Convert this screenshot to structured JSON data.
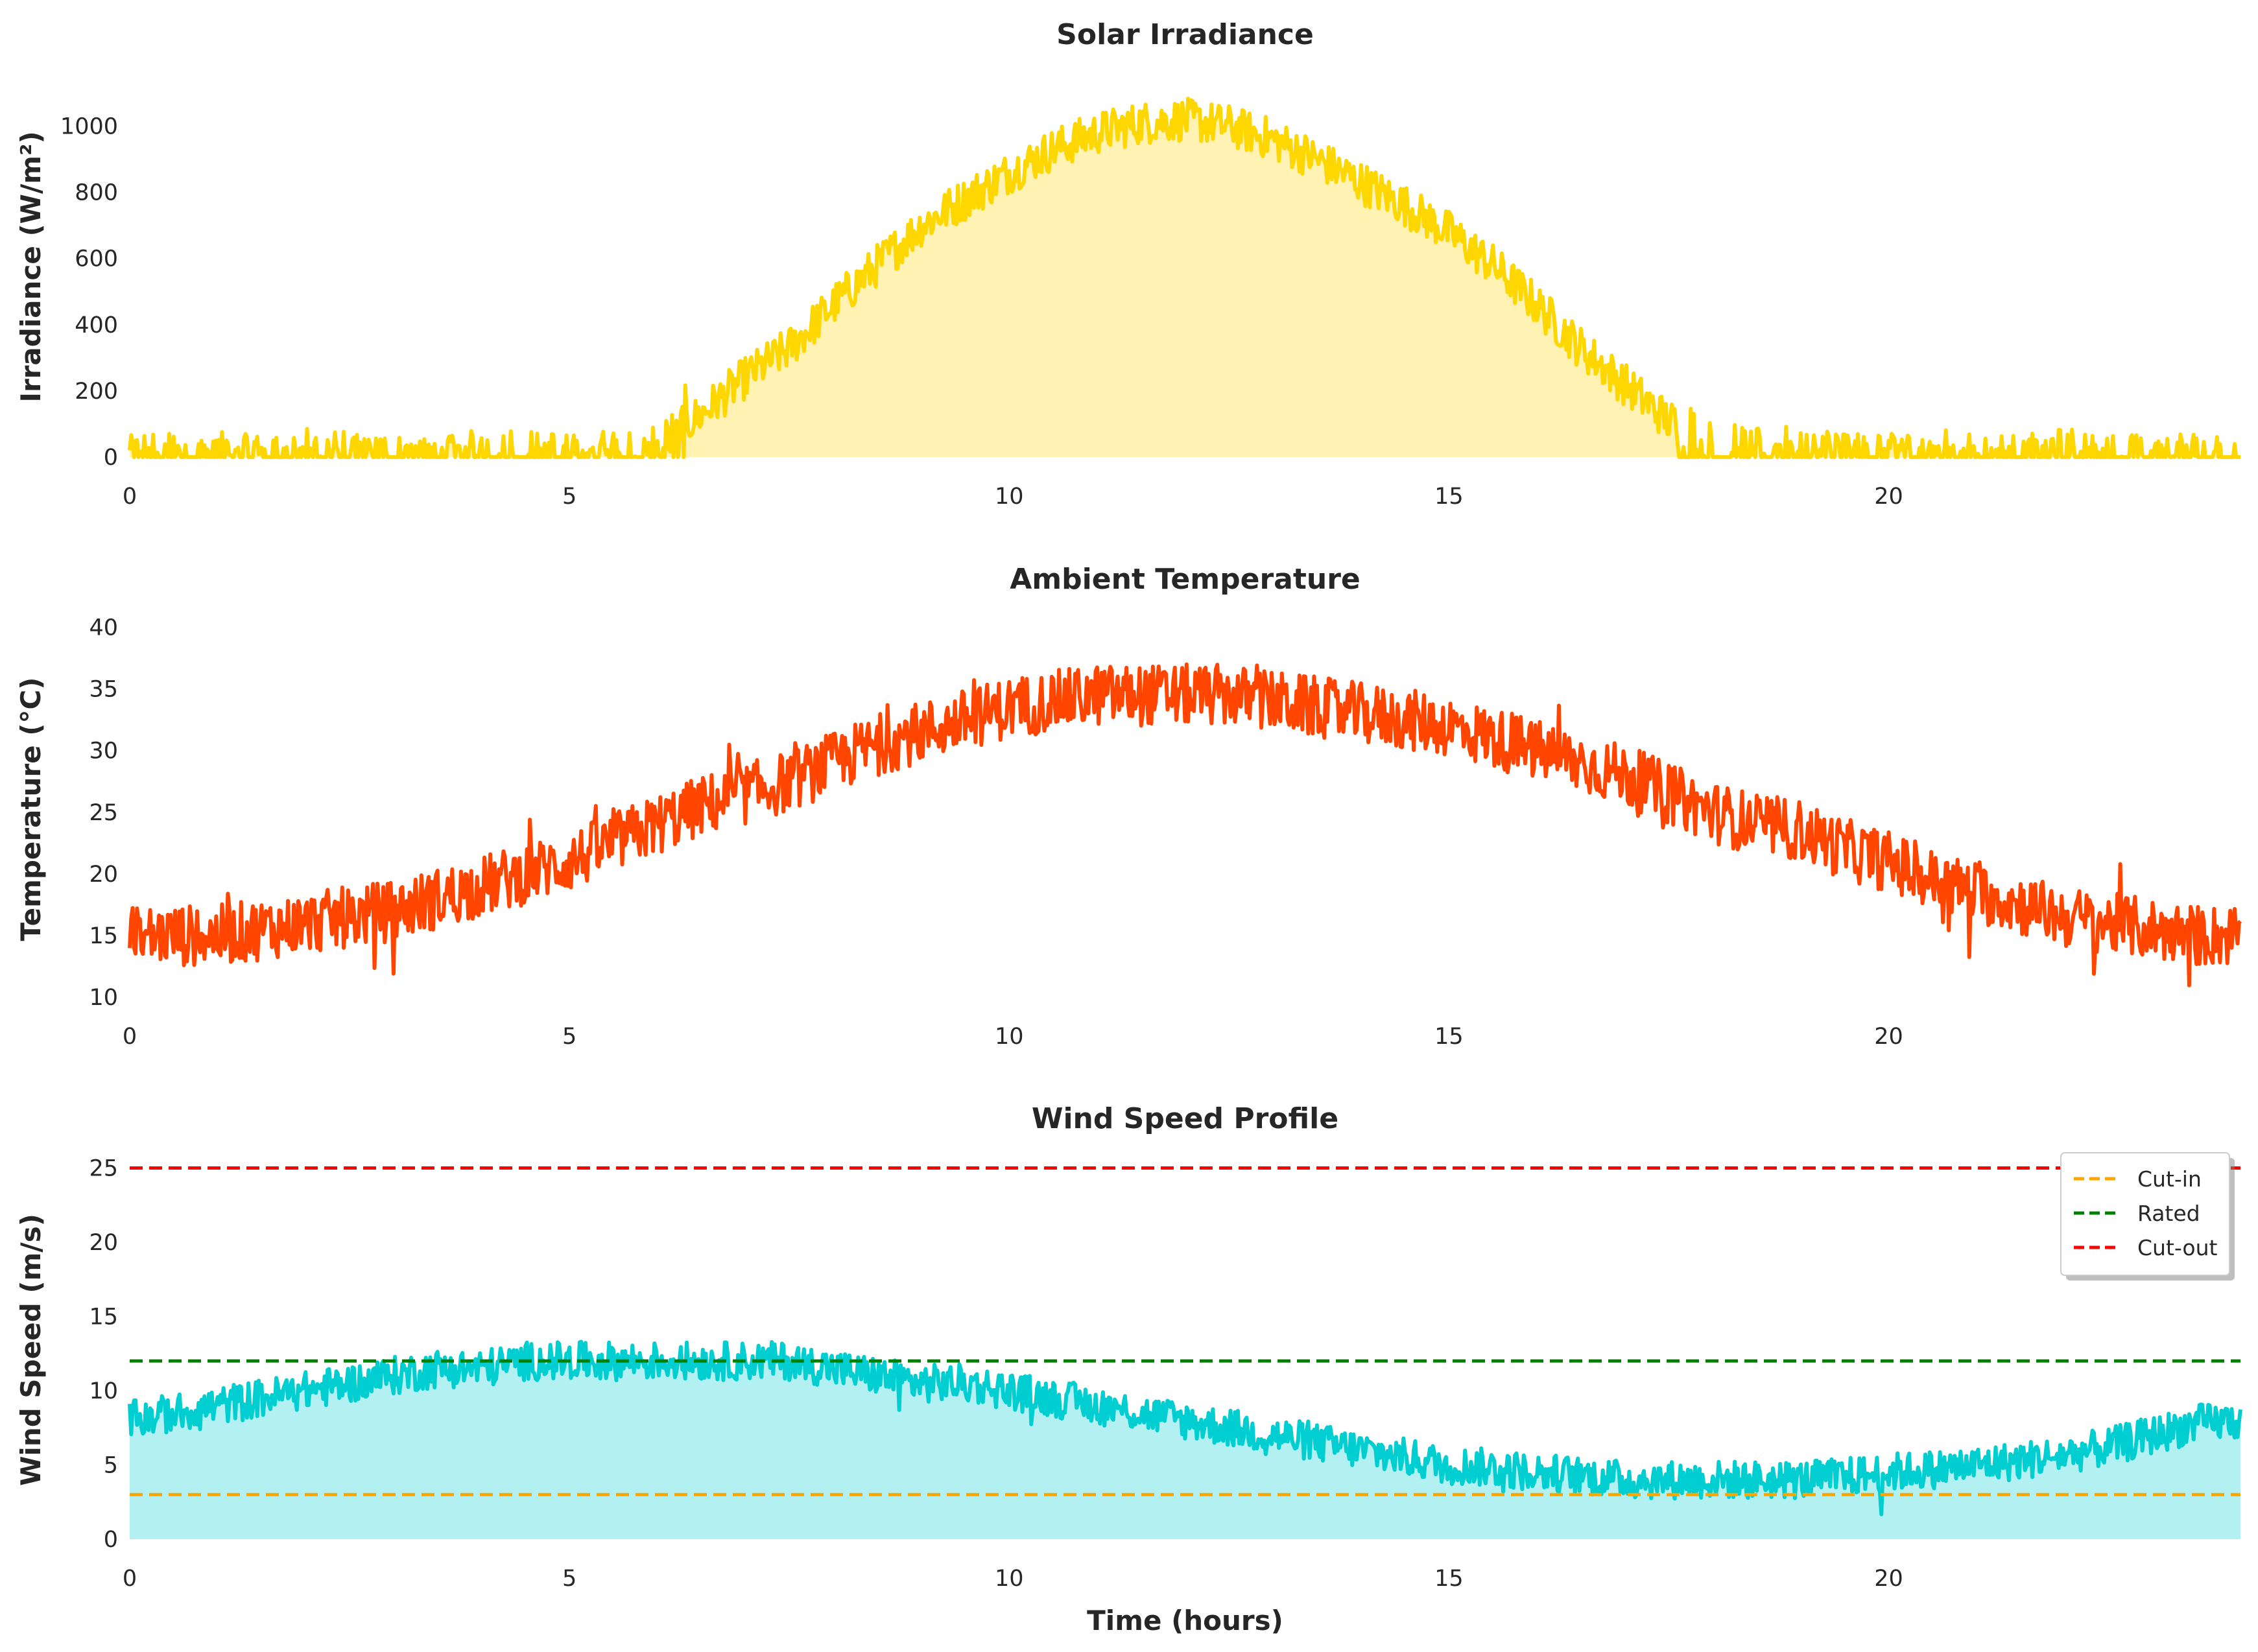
{
  "chart_data": [
    {
      "type": "area",
      "title": "Solar Irradiance",
      "xlabel": "",
      "ylabel": "Irradiance (W/m²)",
      "xlim": [
        0,
        24
      ],
      "ylim": [
        0,
        1150
      ],
      "xticks": [
        0,
        5,
        10,
        15,
        20
      ],
      "yticks": [
        0,
        200,
        400,
        600,
        800,
        1000
      ],
      "grid": false,
      "series": [
        {
          "color": "#FFD700",
          "fill": "#FFF2B3",
          "x": [
            0,
            0.5,
            1,
            1.5,
            2,
            2.5,
            3,
            3.5,
            4,
            4.5,
            5,
            5.5,
            6,
            6.5,
            7,
            7.5,
            8,
            8.5,
            9,
            9.5,
            10,
            10.5,
            11,
            11.5,
            12,
            12.5,
            13,
            13.5,
            14,
            14.5,
            15,
            15.5,
            16,
            16.5,
            17,
            17.5,
            18,
            18.5,
            19,
            19.5,
            20,
            20.5,
            21,
            21.5,
            22,
            22.5,
            23,
            23.5,
            24
          ],
          "values": [
            30,
            40,
            35,
            30,
            40,
            35,
            30,
            25,
            40,
            45,
            30,
            40,
            45,
            130,
            240,
            330,
            460,
            580,
            700,
            780,
            860,
            930,
            980,
            1010,
            1020,
            1000,
            960,
            900,
            830,
            760,
            680,
            580,
            460,
            330,
            220,
            110,
            50,
            40,
            45,
            40,
            35,
            40,
            35,
            30,
            40,
            35,
            30,
            35,
            30
          ]
        }
      ]
    },
    {
      "type": "line",
      "title": "Ambient Temperature",
      "xlabel": "",
      "ylabel": "Temperature (°C)",
      "xlim": [
        0,
        24
      ],
      "ylim": [
        10,
        40.5
      ],
      "xticks": [
        0,
        5,
        10,
        15,
        20
      ],
      "yticks": [
        10,
        15,
        20,
        25,
        30,
        35,
        40
      ],
      "grid": false,
      "series": [
        {
          "color": "#FF4500",
          "x": [
            0,
            0.5,
            1,
            1.5,
            2,
            2.5,
            3,
            3.5,
            4,
            4.5,
            5,
            5.5,
            6,
            6.5,
            7,
            7.5,
            8,
            8.5,
            9,
            9.5,
            10,
            10.5,
            11,
            11.5,
            12,
            12.5,
            13,
            13.5,
            14,
            14.5,
            15,
            15.5,
            16,
            16.5,
            17,
            17.5,
            18,
            18.5,
            19,
            19.5,
            20,
            20.5,
            21,
            21.5,
            22,
            22.5,
            23,
            23.5,
            24
          ],
          "values": [
            15,
            15,
            15,
            15.5,
            16,
            16.5,
            17,
            18,
            19,
            20,
            21,
            22.5,
            24,
            25.5,
            26.5,
            27.5,
            29,
            30.5,
            31.5,
            32.5,
            33.5,
            34,
            34.5,
            34.5,
            34.5,
            34.5,
            34,
            33.5,
            33,
            32.5,
            32,
            31,
            30,
            29,
            28,
            26.5,
            25,
            24,
            23.5,
            22,
            21,
            19.5,
            18.5,
            17.5,
            16.5,
            16,
            15.5,
            15,
            15
          ]
        }
      ]
    },
    {
      "type": "area",
      "title": "Wind Speed Profile",
      "xlabel": "Time (hours)",
      "ylabel": "Wind Speed (m/s)",
      "xlim": [
        0,
        24
      ],
      "ylim": [
        0,
        25.5
      ],
      "xticks": [
        0,
        5,
        10,
        15,
        20
      ],
      "yticks": [
        0,
        5,
        10,
        15,
        20,
        25
      ],
      "grid": false,
      "legend_position": "top-right",
      "series": [
        {
          "color": "#00CED1",
          "fill": "#B2F0F1",
          "x": [
            0,
            0.5,
            1,
            1.5,
            2,
            2.5,
            3,
            3.5,
            4,
            4.5,
            5,
            5.5,
            6,
            6.5,
            7,
            7.5,
            8,
            8.5,
            9,
            9.5,
            10,
            10.5,
            11,
            11.5,
            12,
            12.5,
            13,
            13.5,
            14,
            14.5,
            15,
            15.5,
            16,
            16.5,
            17,
            17.5,
            18,
            18.5,
            19,
            19.5,
            20,
            20.5,
            21,
            21.5,
            22,
            22.5,
            23,
            23.5,
            24
          ],
          "values": [
            8,
            8.5,
            9,
            9.5,
            10,
            10.5,
            11,
            11.5,
            11.5,
            12,
            12,
            12,
            12,
            12,
            12,
            12,
            11.5,
            11,
            10.5,
            10.5,
            10,
            9.5,
            9,
            8.5,
            8,
            7.5,
            7,
            6.5,
            6,
            5.5,
            5,
            4.8,
            4.5,
            4.3,
            4,
            4,
            4,
            4,
            4,
            4.2,
            4.5,
            4.7,
            5,
            5.3,
            5.7,
            6.2,
            7,
            7.8,
            8
          ]
        }
      ],
      "reference_lines": [
        {
          "name": "Cut-in",
          "y": 3,
          "color": "#FFA500"
        },
        {
          "name": "Rated",
          "y": 12,
          "color": "#008000"
        },
        {
          "name": "Cut-out",
          "y": 25,
          "color": "#FF0000"
        }
      ]
    }
  ]
}
